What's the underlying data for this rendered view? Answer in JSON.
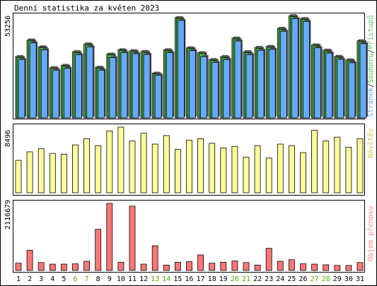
{
  "title": "Denní statistika za květen 2023",
  "colors": {
    "background": "#ffffff",
    "border": "#000000",
    "hits": "#66bb66",
    "files": "#44cc44",
    "pages": "#66aaff",
    "visits": "#ffff99",
    "volume": "#ff7777",
    "weekend_label": "#55aa00"
  },
  "chart_data": [
    {
      "type": "bar",
      "title": "Denní statistika za květen 2023",
      "ymax_label": "53256",
      "legend": {
        "hits": "Přístupů",
        "files": "Souborů",
        "pages": "Stránek",
        "sep": "/"
      },
      "categories": [
        "1",
        "2",
        "3",
        "4",
        "5",
        "6",
        "7",
        "8",
        "9",
        "10",
        "11",
        "12",
        "13",
        "14",
        "15",
        "16",
        "17",
        "18",
        "19",
        "20",
        "21",
        "22",
        "23",
        "24",
        "25",
        "26",
        "27",
        "28",
        "29",
        "30",
        "31"
      ],
      "weekend": [
        false,
        false,
        false,
        false,
        false,
        true,
        true,
        false,
        false,
        false,
        false,
        false,
        true,
        true,
        false,
        false,
        false,
        false,
        false,
        true,
        true,
        false,
        false,
        false,
        false,
        false,
        true,
        true,
        false,
        false,
        false
      ],
      "ylim": [
        0,
        53256
      ],
      "series": [
        {
          "name": "Přístupů",
          "values": [
            31500,
            40000,
            36500,
            25800,
            27000,
            34000,
            38000,
            26000,
            32800,
            35000,
            34500,
            34100,
            23000,
            35000,
            51500,
            36000,
            33500,
            30000,
            31500,
            41000,
            34000,
            36200,
            36700,
            46000,
            52500,
            51000,
            37500,
            34800,
            31600,
            29800,
            39600
          ]
        },
        {
          "name": "Souborů",
          "values": [
            31000,
            39500,
            36000,
            25300,
            26500,
            33500,
            37500,
            25500,
            32300,
            34500,
            34000,
            33600,
            22600,
            34500,
            51000,
            35500,
            33000,
            29500,
            31000,
            40500,
            33500,
            35700,
            36200,
            45500,
            52000,
            50500,
            37000,
            34300,
            31100,
            29300,
            39100
          ]
        },
        {
          "name": "Stránek",
          "values": [
            30000,
            38500,
            35000,
            24500,
            25500,
            32500,
            36500,
            24500,
            31000,
            33500,
            33000,
            32600,
            21900,
            33500,
            50000,
            34500,
            31500,
            28500,
            30000,
            39500,
            32500,
            34700,
            35200,
            44500,
            51000,
            49500,
            36000,
            33300,
            30100,
            28300,
            38100
          ]
        }
      ]
    },
    {
      "type": "bar",
      "ymax_label": "8496",
      "legend": {
        "visits": "Návštěv"
      },
      "ylim": [
        0,
        8496
      ],
      "series": [
        {
          "name": "Návštěv",
          "values": [
            4200,
            5300,
            5700,
            5100,
            5000,
            6200,
            7000,
            6100,
            8000,
            8496,
            6700,
            7700,
            6300,
            7400,
            5600,
            6800,
            7000,
            6400,
            5800,
            6000,
            4600,
            6100,
            4500,
            6300,
            6100,
            5200,
            8100,
            6700,
            7200,
            5900,
            7000
          ]
        }
      ]
    },
    {
      "type": "bar",
      "ymax_label": "2116679",
      "legend": {
        "volume": "Objem přenosu"
      },
      "ylim": [
        0,
        2116679
      ],
      "series": [
        {
          "name": "Objem přenosu",
          "values": [
            230000,
            640000,
            250000,
            200000,
            200000,
            210000,
            290000,
            1300000,
            2116679,
            260000,
            2030000,
            200000,
            780000,
            170000,
            260000,
            280000,
            490000,
            230000,
            260000,
            300000,
            250000,
            170000,
            700000,
            290000,
            340000,
            210000,
            200000,
            180000,
            160000,
            160000,
            250000
          ]
        }
      ]
    }
  ]
}
